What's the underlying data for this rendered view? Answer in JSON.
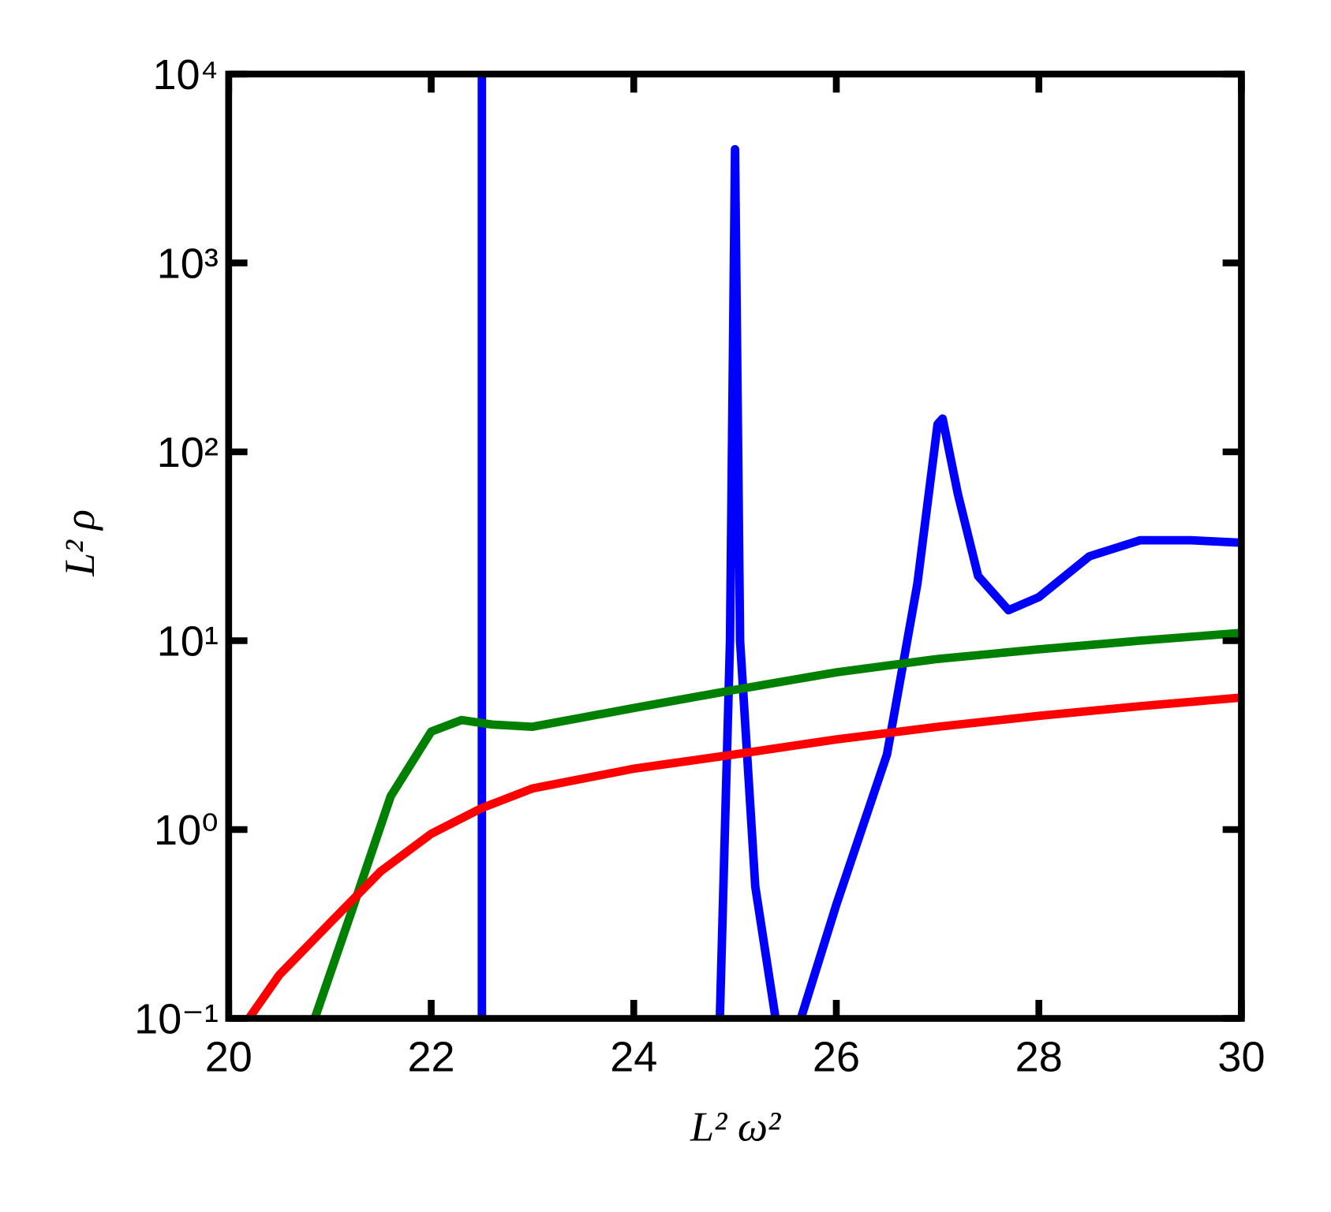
{
  "chart_data": {
    "type": "line",
    "x_label": "L² ω²",
    "y_label": "L² ρ",
    "log_y": true,
    "xlim": [
      20,
      30
    ],
    "xticks": [
      20,
      22,
      24,
      26,
      28,
      30
    ],
    "ylim": [
      0.1,
      10000
    ],
    "yticks": [
      {
        "value": 0.1,
        "label": "10⁻¹"
      },
      {
        "value": 1,
        "label": "10⁰"
      },
      {
        "value": 10,
        "label": "10¹"
      },
      {
        "value": 100,
        "label": "10²"
      },
      {
        "value": 1000,
        "label": "10³"
      },
      {
        "value": 10000,
        "label": "10⁴"
      }
    ],
    "series": [
      {
        "color": "#0000ff",
        "x": [
          22.5,
          22.5,
          null,
          24.85,
          24.95,
          25.0,
          25.05,
          25.2,
          25.4,
          null,
          25.65,
          26.0,
          26.5,
          26.8,
          27.0,
          27.05,
          27.2,
          27.4,
          27.7,
          28.0,
          28.5,
          29.0,
          29.5,
          30.0
        ],
        "values": [
          0.1,
          10000,
          null,
          0.1,
          10,
          4000,
          10,
          0.5,
          0.1,
          null,
          0.1,
          0.4,
          2.5,
          20,
          140,
          150,
          60,
          22,
          14.5,
          17,
          28,
          34,
          34,
          33
        ]
      },
      {
        "color": "#008000",
        "x": [
          20.85,
          21.2,
          21.6,
          22.0,
          22.3,
          22.6,
          23.0,
          24.0,
          25.0,
          26.0,
          27.0,
          28.0,
          29.0,
          30.0
        ],
        "values": [
          0.1,
          0.35,
          1.5,
          3.3,
          3.8,
          3.6,
          3.5,
          4.4,
          5.5,
          6.8,
          8,
          9,
          10,
          11
        ]
      },
      {
        "color": "#ff0000",
        "x": [
          20.2,
          20.5,
          21.0,
          21.5,
          22.0,
          22.5,
          23.0,
          24.0,
          25.0,
          26.0,
          27.0,
          28.0,
          29.0,
          30.0
        ],
        "values": [
          0.1,
          0.17,
          0.32,
          0.6,
          0.95,
          1.3,
          1.65,
          2.1,
          2.5,
          3.0,
          3.5,
          4.0,
          4.5,
          5.0
        ]
      }
    ]
  }
}
